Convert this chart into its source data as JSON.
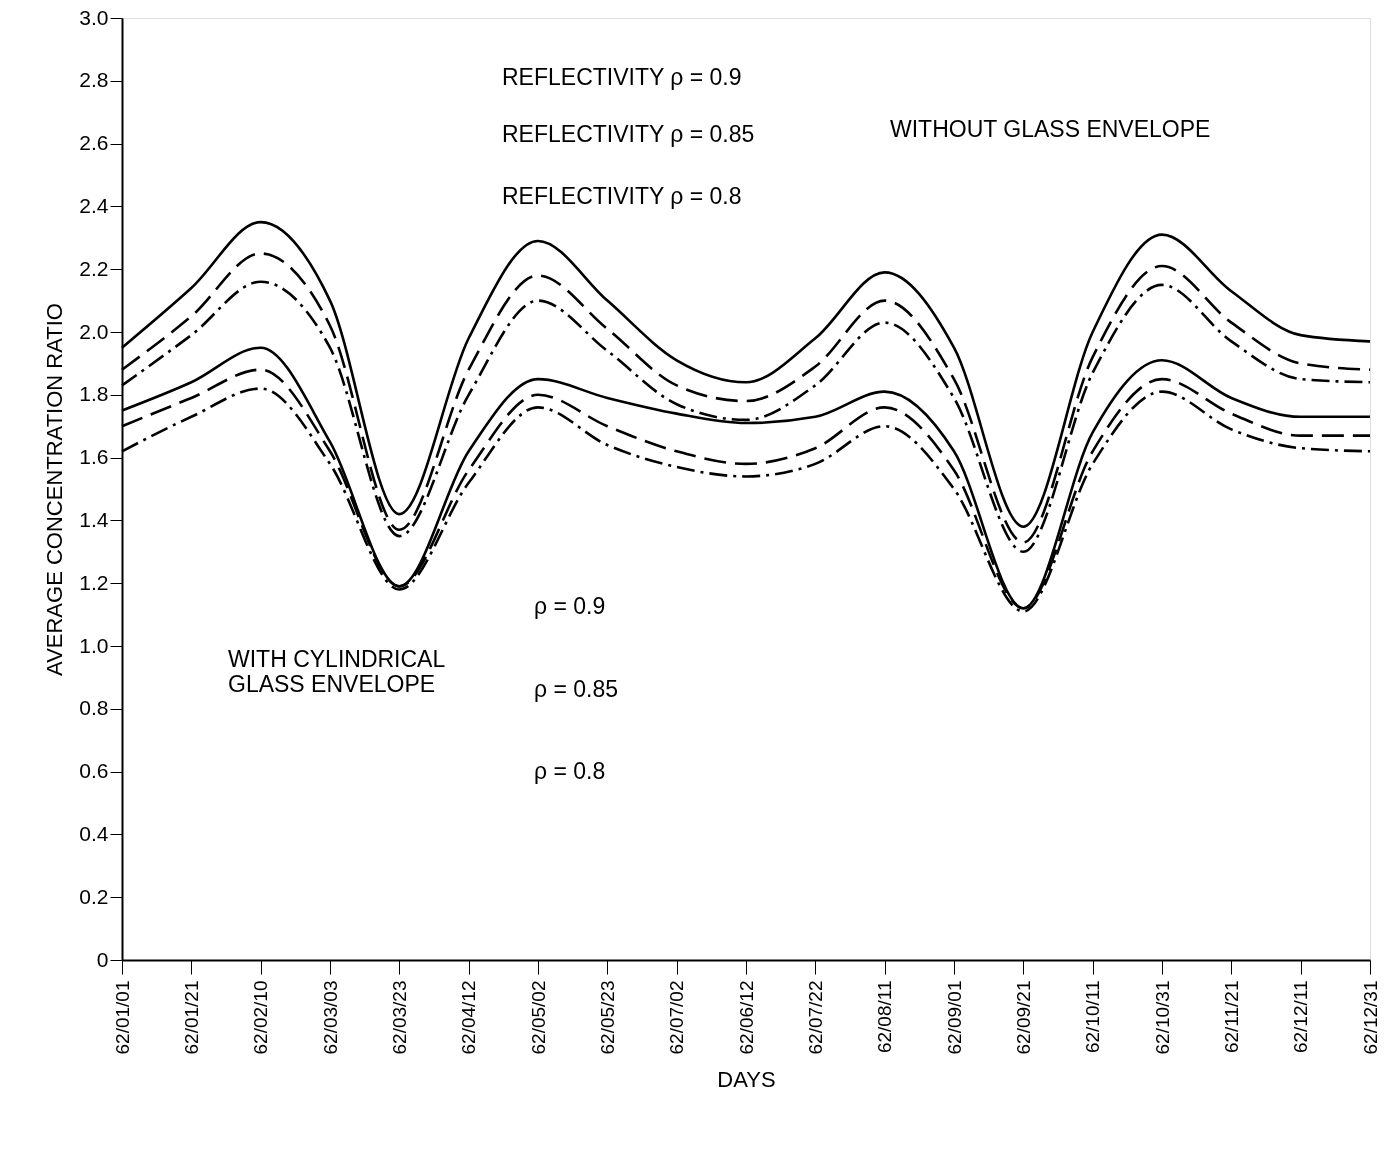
{
  "chart_data": {
    "type": "line",
    "xlabel": "DAYS",
    "ylabel": "AVERAGE CONCENTRATION RATIO",
    "categories": [
      "62/01/01",
      "62/01/21",
      "62/02/10",
      "62/03/03",
      "62/03/23",
      "62/04/12",
      "62/05/02",
      "62/05/23",
      "62/07/02",
      "62/06/12",
      "62/07/22",
      "62/08/11",
      "62/09/01",
      "62/09/21",
      "62/10/11",
      "62/10/31",
      "62/11/21",
      "62/12/11",
      "62/12/31"
    ],
    "ylim": [
      0,
      3
    ],
    "yticks": [
      0,
      0.2,
      0.4,
      0.6,
      0.8,
      {
        "value": 1,
        "label": "1.0"
      },
      1.2,
      1.4,
      1.6,
      1.8,
      {
        "value": 2,
        "label": "2.0"
      },
      2.2,
      2.4,
      2.6,
      2.8,
      {
        "value": 3,
        "label": "3.0"
      }
    ],
    "grid": false,
    "marker": "none",
    "series": [
      {
        "color": "#000000",
        "line_style": "solid",
        "values": [
          1.95,
          2.14,
          2.35,
          2.1,
          1.42,
          1.98,
          2.29,
          2.1,
          1.91,
          1.84,
          1.98,
          2.19,
          1.95,
          1.38,
          2.0,
          2.31,
          2.13,
          1.99,
          1.97
        ]
      },
      {
        "color": "#000000",
        "line_style": "dashed",
        "values": [
          1.88,
          2.05,
          2.25,
          2.02,
          1.37,
          1.88,
          2.18,
          2.01,
          1.83,
          1.78,
          1.89,
          2.1,
          1.85,
          1.33,
          1.92,
          2.21,
          2.03,
          1.9,
          1.88
        ]
      },
      {
        "color": "#000000",
        "line_style": "dashdot",
        "values": [
          1.83,
          1.99,
          2.16,
          1.95,
          1.35,
          1.8,
          2.1,
          1.94,
          1.77,
          1.72,
          1.83,
          2.03,
          1.79,
          1.3,
          1.87,
          2.15,
          1.97,
          1.85,
          1.84
        ]
      },
      {
        "color": "#000000",
        "line_style": "solid",
        "values": [
          1.75,
          1.84,
          1.95,
          1.65,
          1.19,
          1.62,
          1.85,
          1.79,
          1.74,
          1.71,
          1.73,
          1.81,
          1.62,
          1.12,
          1.68,
          1.91,
          1.79,
          1.73,
          1.73
        ]
      },
      {
        "color": "#000000",
        "line_style": "dashed",
        "values": [
          1.7,
          1.79,
          1.88,
          1.62,
          1.19,
          1.56,
          1.8,
          1.7,
          1.62,
          1.58,
          1.63,
          1.76,
          1.56,
          1.12,
          1.62,
          1.85,
          1.74,
          1.67,
          1.67
        ]
      },
      {
        "color": "#000000",
        "line_style": "dashdot",
        "values": [
          1.62,
          1.73,
          1.82,
          1.58,
          1.18,
          1.52,
          1.76,
          1.64,
          1.57,
          1.54,
          1.58,
          1.7,
          1.5,
          1.11,
          1.58,
          1.81,
          1.69,
          1.63,
          1.62
        ]
      }
    ],
    "annotations": [
      "REFLECTIVITY ρ = 0.9",
      "REFLECTIVITY ρ = 0.85",
      "REFLECTIVITY ρ = 0.8",
      "WITHOUT GLASS ENVELOPE",
      "WITH CYLINDRICAL\nGLASS ENVELOPE",
      "ρ = 0.9",
      "ρ = 0.85",
      "ρ = 0.8"
    ]
  }
}
